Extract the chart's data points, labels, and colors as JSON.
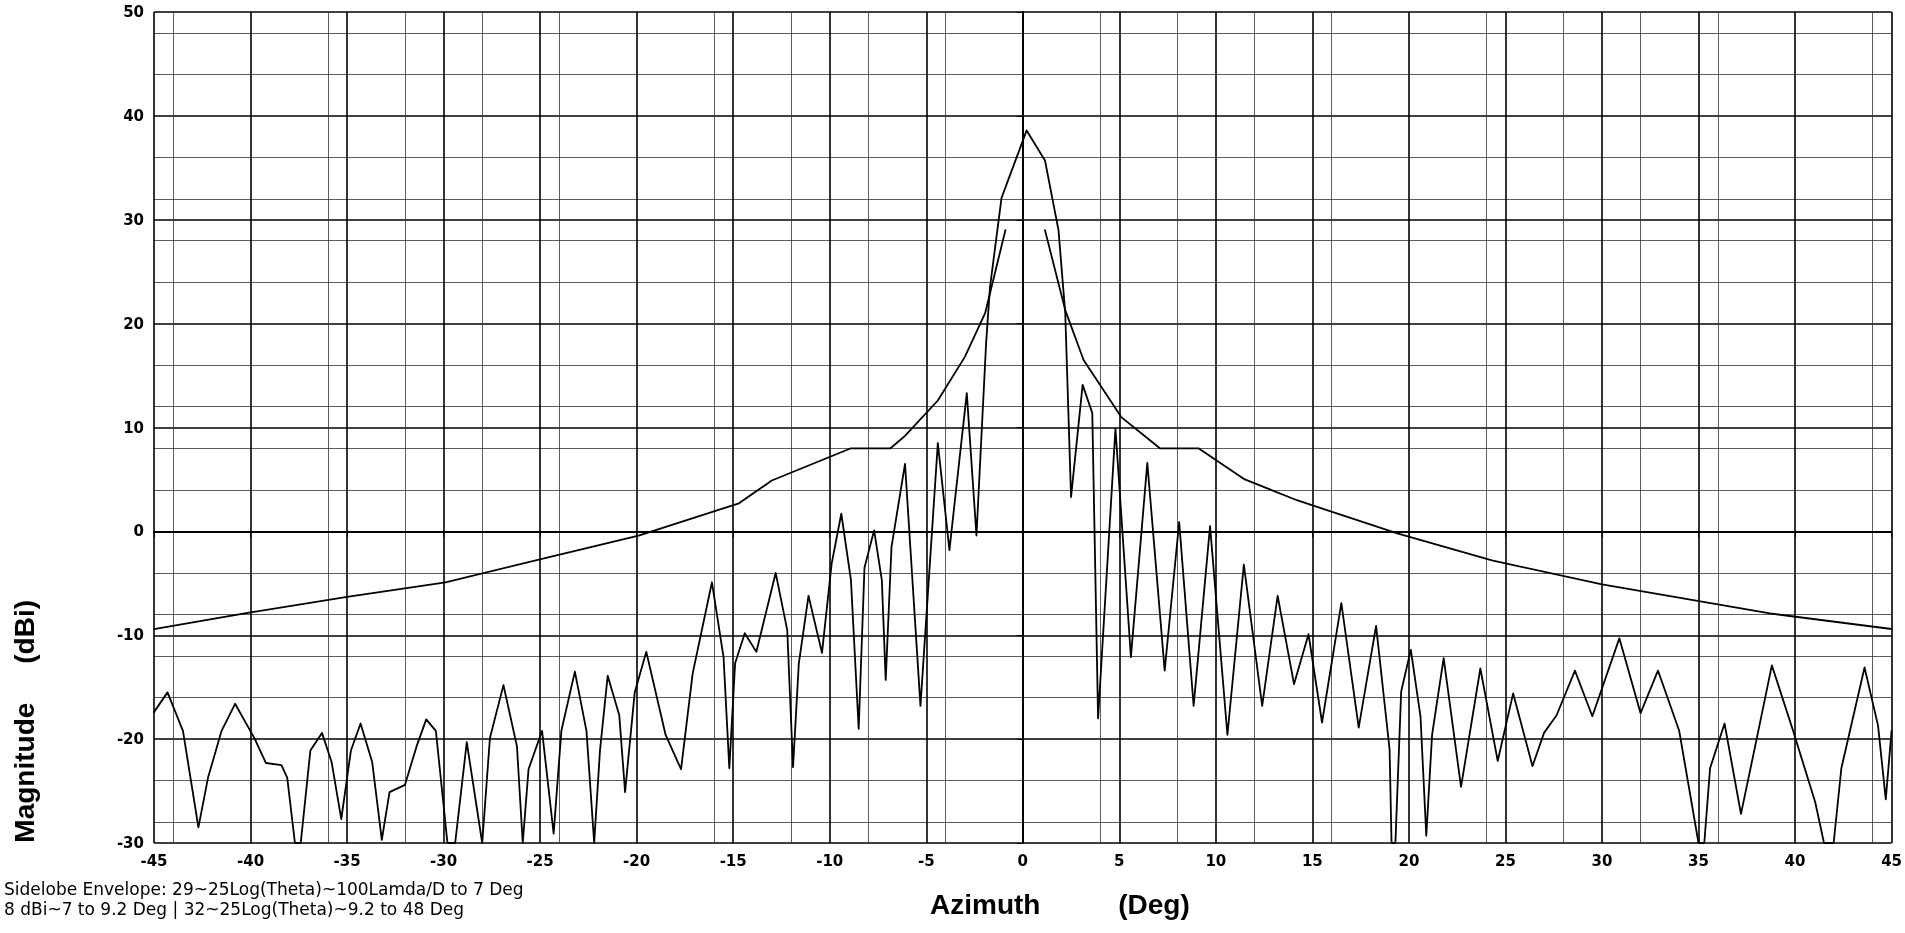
{
  "chart_data": {
    "type": "line",
    "xlabel": "Azimuth          (Deg)",
    "ylabel": "Magnitude     (dBi)",
    "annotations": [
      "Sidelobe Envelope: 29~25Log(Theta)~100Lamda/D to 7 Deg",
      "8 dBi~7 to 9.2 Deg | 32~25Log(Theta)~9.2 to 48 Deg"
    ],
    "xlim": [
      -45,
      45
    ],
    "xticks": [
      -45,
      -40,
      -35,
      -30,
      -25,
      -20,
      -15,
      -10,
      -5,
      0,
      5,
      10,
      15,
      20,
      25,
      30,
      35,
      40,
      45
    ],
    "ylim": [
      -30,
      50
    ],
    "yticks": [
      -30,
      -20,
      -10,
      0,
      10,
      20,
      30,
      40,
      50
    ],
    "grid": true,
    "marker": "none",
    "line_style": "solid",
    "series": [
      {
        "color": "#000000",
        "x": [
          -45,
          -40,
          -35,
          -29.9,
          -24.8,
          -19.9,
          -14.7,
          -13,
          -8.9,
          -6.85,
          -6.1,
          -4.4,
          -3,
          -1.95,
          -0.9,
          0.1,
          1.15,
          2.2,
          3.15,
          5.1,
          7.1,
          9.1,
          11.5,
          14.2,
          19.4,
          24.3,
          30,
          38.7,
          45
        ],
        "values": [
          -9.4,
          -7.8,
          -6.3,
          -4.9,
          -2.6,
          -0.4,
          2.7,
          4.9,
          8,
          8,
          9.2,
          12.6,
          16.8,
          21,
          29,
          null,
          29,
          21.3,
          16.5,
          11,
          8,
          8,
          5,
          3,
          -0.2,
          -2.8,
          -5.1,
          -7.9,
          -9.4
        ]
      },
      {
        "color": "#000000",
        "x": [
          -45,
          -44.3,
          -43.5,
          -42.7,
          -42.2,
          -41.5,
          -40.8,
          -39.8,
          -39.2,
          -38.4,
          -38.1,
          -37.7,
          -37.4,
          -36.9,
          -36.3,
          -35.8,
          -35.3,
          -34.8,
          -34.3,
          -33.7,
          -33.2,
          -32.8,
          -32,
          -31.4,
          -30.9,
          -30.4,
          -29.8,
          -29.4,
          -28.8,
          -28,
          -27.6,
          -26.9,
          -26.2,
          -25.9,
          -25.6,
          -24.9,
          -24.3,
          -23.9,
          -23.2,
          -22.6,
          -22.2,
          -21.9,
          -21.5,
          -20.9,
          -20.6,
          -20.1,
          -19.5,
          -18.5,
          -17.7,
          -17.1,
          -16.1,
          -15.5,
          -15.2,
          -14.9,
          -14.4,
          -13.8,
          -12.8,
          -12.2,
          -11.9,
          -11.6,
          -11.1,
          -10.4,
          -9.9,
          -9.4,
          -8.9,
          -8.5,
          -8.2,
          -7.7,
          -7.3,
          -7.1,
          -6.8,
          -6.1,
          -5.3,
          -4.4,
          -3.8,
          -2.9,
          -2.4,
          -1.9,
          -1.7,
          -1.1,
          0.2,
          1.15,
          1.85,
          2.2,
          2.5,
          3.1,
          3.6,
          3.9,
          4.8,
          5.6,
          6.45,
          7.35,
          8.1,
          8.85,
          9.7,
          10.6,
          11.45,
          12.4,
          13.2,
          14.05,
          14.8,
          15.5,
          16.5,
          17.4,
          18.3,
          19,
          19.1,
          19.3,
          19.6,
          20.1,
          20.6,
          20.9,
          21.2,
          21.8,
          22.7,
          23.7,
          24.6,
          25.4,
          26.4,
          27,
          27.65,
          28.6,
          29.5,
          30.9,
          32,
          32.9,
          34,
          35,
          35.3,
          35.6,
          36.35,
          37.2,
          38,
          38.8,
          39.9,
          41.05,
          41.5,
          42,
          42.4,
          43.6,
          44.3,
          44.7,
          45
        ],
        "values": [
          -17.4,
          -15.5,
          -19.2,
          -28.5,
          -23.7,
          -19.2,
          -16.6,
          -19.9,
          -22.3,
          -22.5,
          -23.7,
          -30,
          -30,
          -21.1,
          -19.4,
          -22.2,
          -27.7,
          -21.1,
          -18.5,
          -22.2,
          -29.7,
          -25.1,
          -24.4,
          -20.7,
          -18.1,
          -19.2,
          -30,
          -30,
          -20.3,
          -30,
          -19.9,
          -14.8,
          -20.7,
          -30,
          -22.9,
          -19.2,
          -29.1,
          -19.2,
          -13.5,
          -19.2,
          -30,
          -21.1,
          -13.9,
          -17.7,
          -25.1,
          -15.5,
          -11.6,
          -19.6,
          -22.9,
          -13.7,
          -4.9,
          -12.1,
          -22.8,
          -12.7,
          -9.8,
          -11.6,
          -4,
          -9.5,
          -22.7,
          -12.7,
          -6.2,
          -11.7,
          -3.1,
          1.7,
          -4.7,
          -19,
          -3.5,
          0.1,
          -4.7,
          -14.3,
          -1.5,
          6.5,
          -16.8,
          8.5,
          -1.8,
          13.3,
          -0.4,
          18.1,
          23.5,
          32.1,
          38.6,
          35.7,
          29,
          21,
          3.3,
          14.1,
          11.4,
          -18,
          9.9,
          -12.1,
          6.6,
          -13.4,
          0.9,
          -16.8,
          0.5,
          -19.6,
          -3.2,
          -16.8,
          -6.2,
          -14.7,
          -9.9,
          -18.4,
          -6.9,
          -18.9,
          -9.1,
          -21,
          -30,
          -30,
          -15.4,
          -11.4,
          -17.8,
          -29.3,
          -19.6,
          -12.2,
          -24.6,
          -13.2,
          -22.1,
          -15.6,
          -22.6,
          -19.4,
          -17.7,
          -13.4,
          -17.8,
          -10.3,
          -17.5,
          -13.4,
          -19.2,
          -30,
          -30,
          -22.8,
          -18.5,
          -27.2,
          -20.1,
          -12.9,
          -19.2,
          -26.1,
          -30,
          -30,
          -22.8,
          -13.1,
          -18.7,
          -25.8,
          -19.2
        ]
      }
    ]
  }
}
